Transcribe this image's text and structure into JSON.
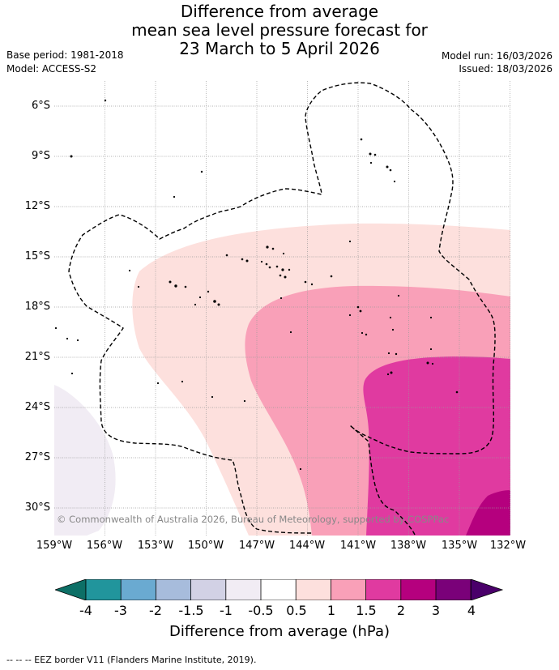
{
  "title": {
    "line1": "Difference from average",
    "line2": "mean sea level pressure forecast for",
    "line3": "23 March to 5 April 2026"
  },
  "meta": {
    "base_period": "Base period: 1981-2018",
    "model": "Model: ACCESS-S2",
    "model_run": "Model run: 16/03/2026",
    "issued": "Issued: 18/03/2026"
  },
  "map": {
    "lat_labels": [
      "6°S",
      "9°S",
      "12°S",
      "15°S",
      "18°S",
      "21°S",
      "24°S",
      "27°S",
      "30°S"
    ],
    "lon_labels": [
      "159°W",
      "156°W",
      "153°W",
      "150°W",
      "147°W",
      "144°W",
      "141°W",
      "138°W",
      "135°W",
      "132°W"
    ],
    "copyright": "© Commonwealth of Australia 2026, Bureau of Meteorology, supported by COSPPac",
    "colors": {
      "level_-1_-0.5": "#f1ecf4",
      "level_0.5_1": "#fde0dd",
      "level_1_1.5": "#f9a0b8",
      "level_1.5_2": "#e03aa0",
      "level_2_3": "#b5007e",
      "grid": "#999999"
    }
  },
  "colorbar": {
    "title": "Difference from average (hPa)",
    "ticks": [
      "-4",
      "-3",
      "-2",
      "-1.5",
      "-1",
      "-0.5",
      "0.5",
      "1",
      "1.5",
      "2",
      "3",
      "4"
    ],
    "colors": [
      "#0d6f66",
      "#21959c",
      "#6aaad1",
      "#a7bcdc",
      "#d2d1e5",
      "#f1ecf4",
      "#ffffff",
      "#fde0dd",
      "#f9a0b8",
      "#e03aa0",
      "#b5007e",
      "#7a0179",
      "#4a006a"
    ]
  },
  "footer": "-- -- -- EEZ border V11 (Flanders Marine Institute, 2019)."
}
